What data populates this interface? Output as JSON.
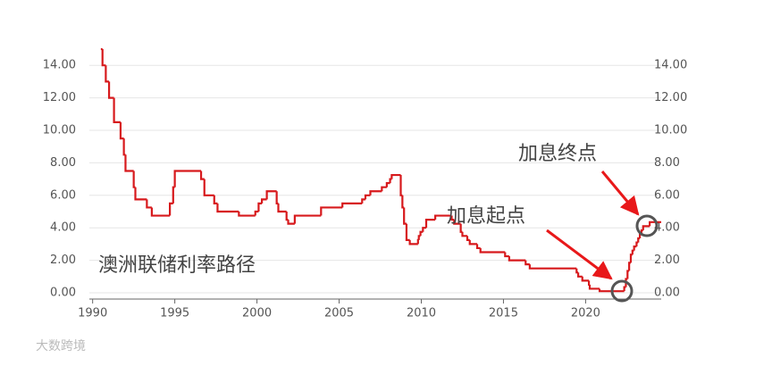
{
  "chart_data": {
    "type": "line",
    "step": "post",
    "x": [
      1990.5,
      1990.6,
      1990.8,
      1991.0,
      1991.3,
      1991.7,
      1991.9,
      1992.0,
      1992.5,
      1992.6,
      1993.3,
      1993.6,
      1994.7,
      1994.9,
      1995.0,
      1996.6,
      1996.8,
      1997.4,
      1997.6,
      1998.9,
      1999.9,
      2000.1,
      2000.3,
      2000.6,
      2001.2,
      2001.3,
      2001.8,
      2001.9,
      2002.3,
      2003.9,
      2005.2,
      2006.4,
      2006.6,
      2006.9,
      2007.6,
      2007.9,
      2008.1,
      2008.2,
      2008.75,
      2008.85,
      2008.95,
      2009.1,
      2009.3,
      2009.8,
      2009.85,
      2009.95,
      2010.1,
      2010.3,
      2010.85,
      2011.85,
      2012.0,
      2012.4,
      2012.5,
      2012.8,
      2012.95,
      2013.4,
      2013.6,
      2015.1,
      2015.35,
      2016.35,
      2016.6,
      2019.45,
      2019.55,
      2019.8,
      2020.2,
      2020.25,
      2020.85,
      2022.35,
      2022.45,
      2022.55,
      2022.65,
      2022.75,
      2022.85,
      2022.95,
      2023.1,
      2023.2,
      2023.3,
      2023.4,
      2023.5,
      2023.9,
      2024.6
    ],
    "series": [
      {
        "color": "#d7191c",
        "values": [
          15.0,
          14.0,
          13.0,
          12.0,
          10.5,
          9.5,
          8.5,
          7.5,
          6.5,
          5.75,
          5.25,
          4.75,
          5.5,
          6.5,
          7.5,
          7.0,
          6.0,
          5.5,
          5.0,
          4.75,
          5.0,
          5.5,
          5.75,
          6.25,
          5.5,
          5.0,
          4.5,
          4.25,
          4.75,
          5.25,
          5.5,
          5.75,
          6.0,
          6.25,
          6.5,
          6.75,
          7.0,
          7.25,
          6.0,
          5.25,
          4.25,
          3.25,
          3.0,
          3.25,
          3.5,
          3.75,
          4.0,
          4.5,
          4.75,
          4.5,
          4.25,
          3.75,
          3.5,
          3.25,
          3.0,
          2.75,
          2.5,
          2.25,
          2.0,
          1.75,
          1.5,
          1.25,
          1.0,
          0.75,
          0.5,
          0.25,
          0.1,
          0.35,
          0.85,
          1.35,
          1.85,
          2.35,
          2.6,
          2.85,
          3.1,
          3.35,
          3.6,
          3.85,
          4.1,
          4.35,
          4.35
        ]
      }
    ],
    "xlim": [
      1989.8,
      2024.6
    ],
    "xticks": [
      1990,
      1995,
      2000,
      2005,
      2010,
      2015,
      2020
    ],
    "ylim": [
      0,
      15
    ],
    "yticks": [
      {
        "value": 0,
        "label": "0.00"
      },
      {
        "value": 2,
        "label": "2.00"
      },
      {
        "value": 4,
        "label": "4.00"
      },
      {
        "value": 6,
        "label": "6.00"
      },
      {
        "value": 8,
        "label": "8.00"
      },
      {
        "value": 10,
        "label": "10.00"
      },
      {
        "value": 12,
        "label": "12.00"
      },
      {
        "value": 14,
        "label": "14.00"
      }
    ],
    "y2lim": [
      0,
      15
    ],
    "y2ticks": [
      {
        "value": 0,
        "label": "0.00"
      },
      {
        "value": 2,
        "label": "2.00"
      },
      {
        "value": 4,
        "label": "4.00"
      },
      {
        "value": 6,
        "label": "6.00"
      },
      {
        "value": 8,
        "label": "8.00"
      },
      {
        "value": 10,
        "label": "10.00"
      },
      {
        "value": 12,
        "label": "12.00"
      },
      {
        "value": 14,
        "label": "14.00"
      }
    ],
    "grid": true,
    "annotations": [
      "澳洲联储利率路径",
      "加息起点",
      "加息终点"
    ],
    "watermark": "大数跨境"
  }
}
